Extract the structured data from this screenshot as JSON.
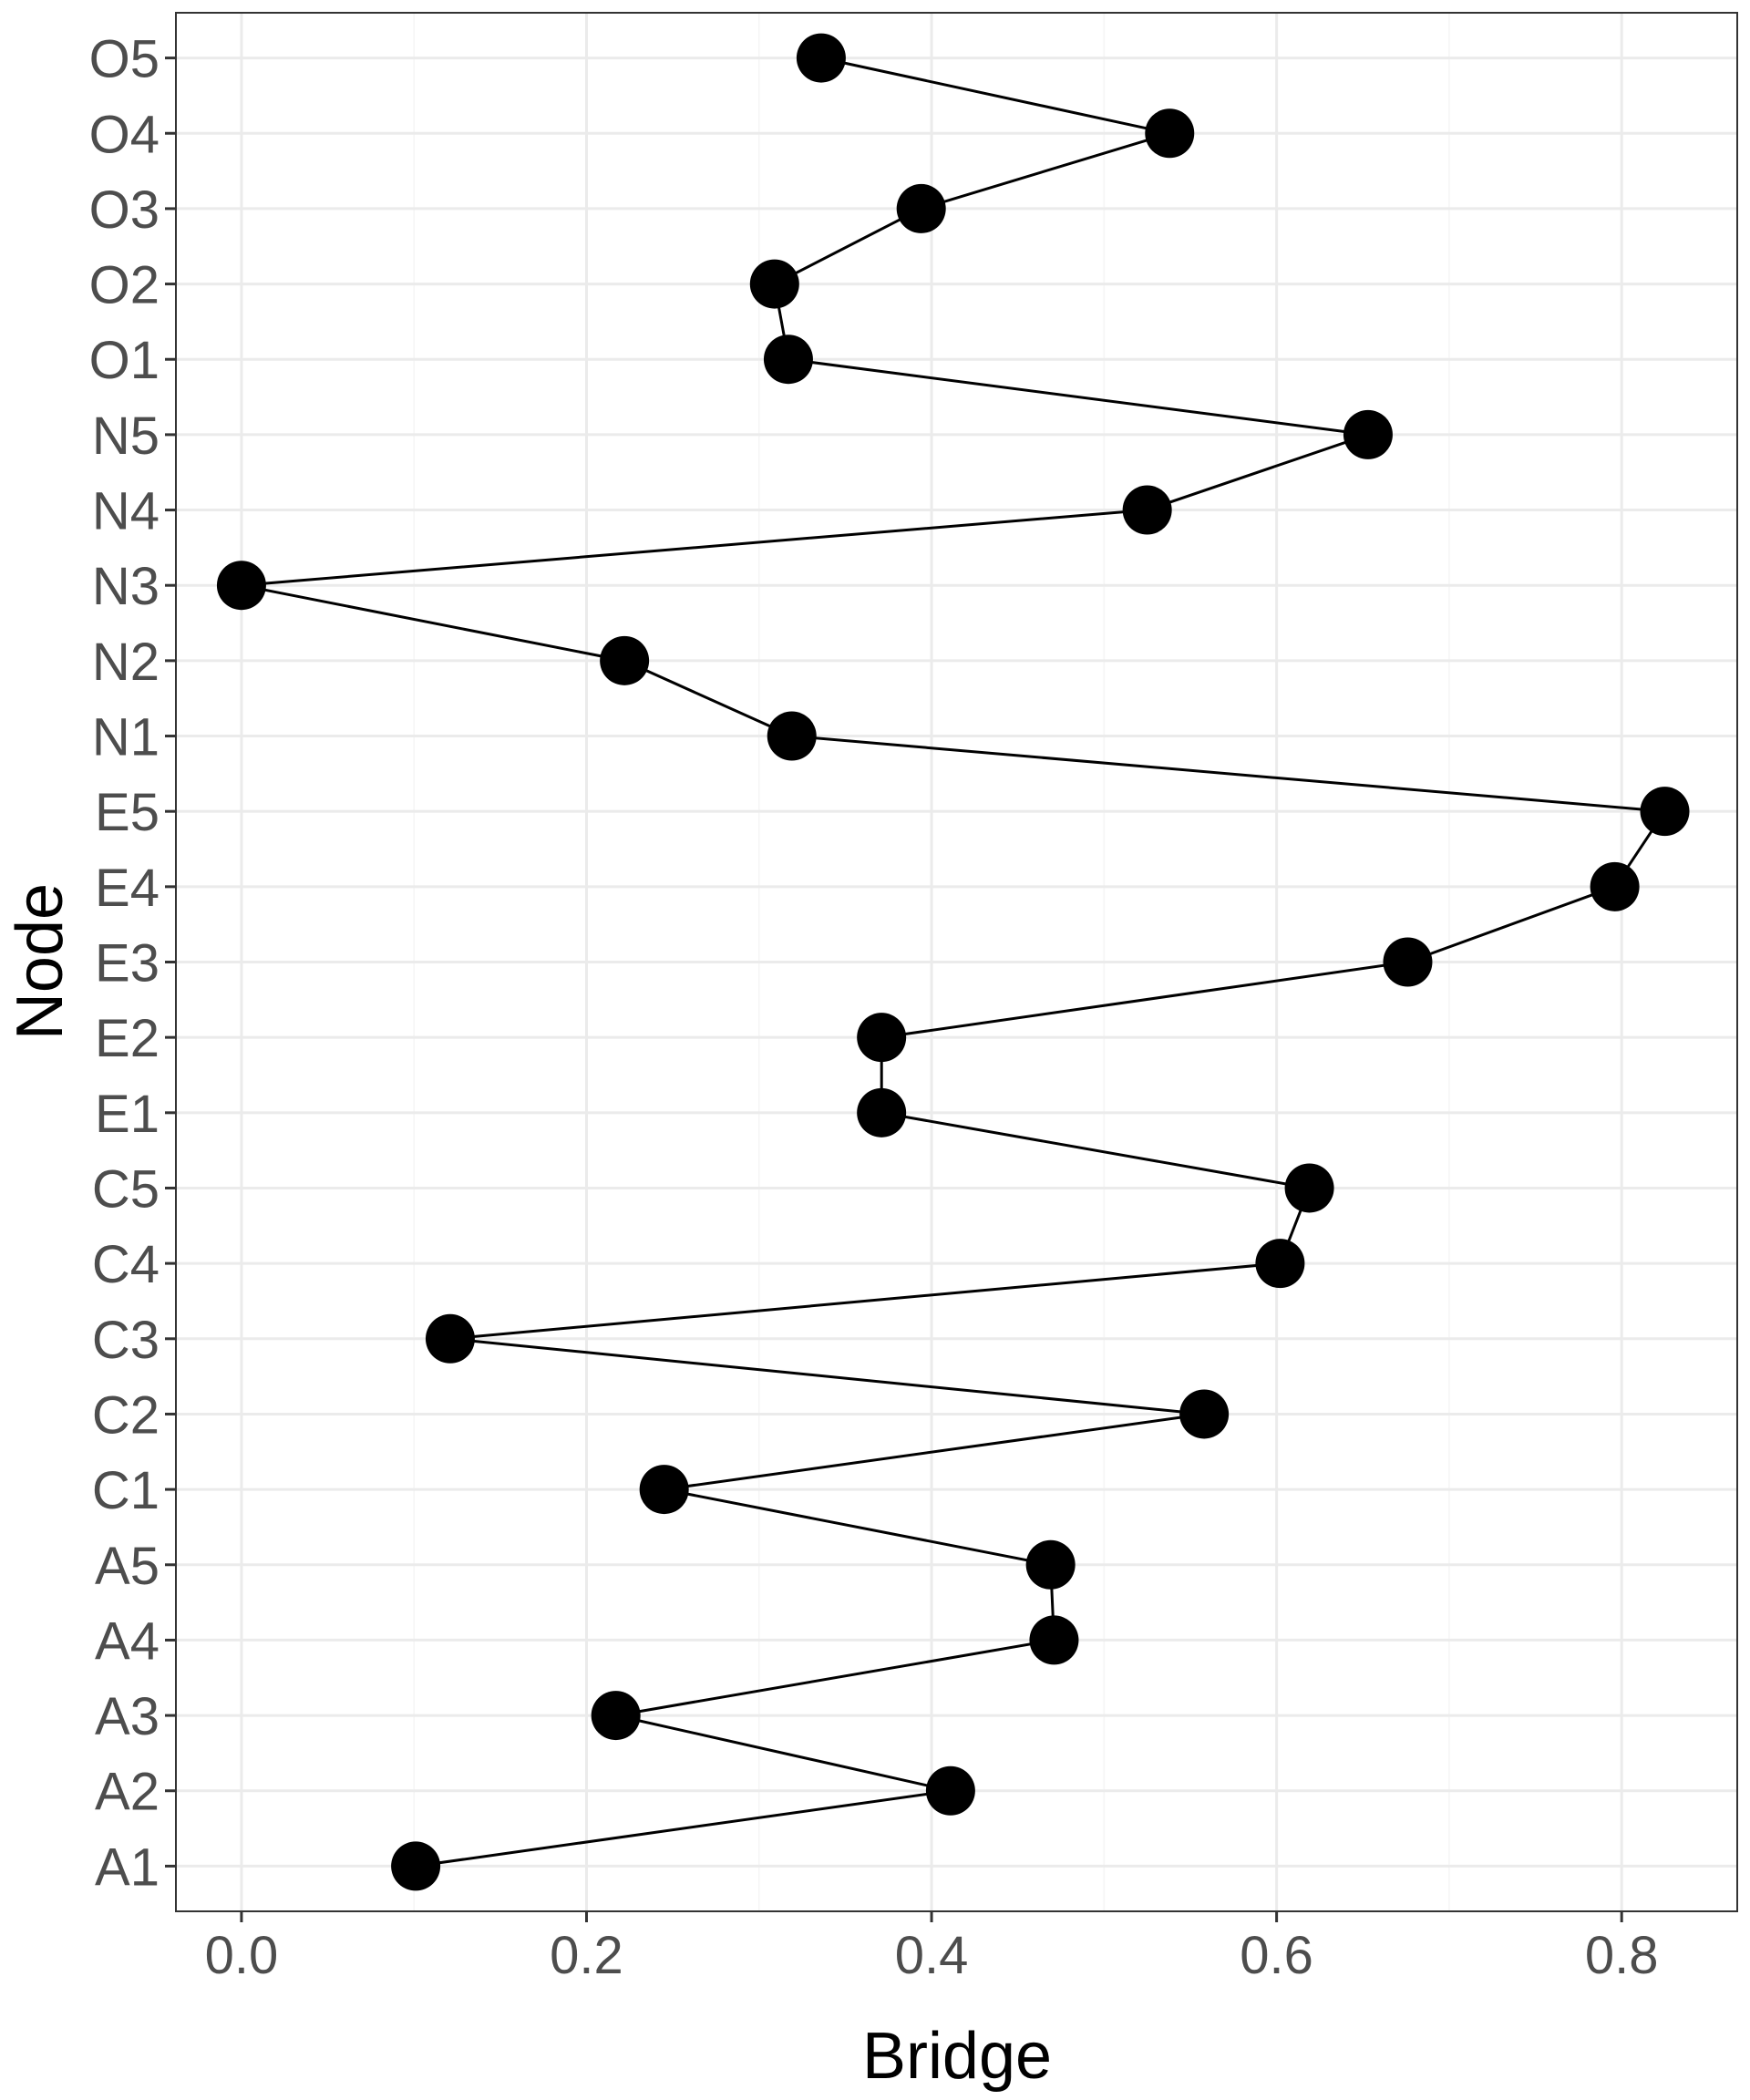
{
  "chart_data": {
    "type": "line",
    "xlabel": "Bridge",
    "ylabel": "Node",
    "xlim": [
      -0.038,
      0.867
    ],
    "x_ticks": [
      0.0,
      0.2,
      0.4,
      0.6,
      0.8
    ],
    "x_tick_labels": [
      "0.0",
      "0.2",
      "0.4",
      "0.6",
      "0.8"
    ],
    "grid": true,
    "marker": "filled-circle",
    "colors": {
      "line": "#000000",
      "point": "#000000",
      "grid_major": "#ebebeb",
      "grid_minor": "#f5f5f5",
      "panel_border": "#333333"
    },
    "categories": [
      "A1",
      "A2",
      "A3",
      "A4",
      "A5",
      "C1",
      "C2",
      "C3",
      "C4",
      "C5",
      "E1",
      "E2",
      "E3",
      "E4",
      "E5",
      "N1",
      "N2",
      "N3",
      "N4",
      "N5",
      "O1",
      "O2",
      "O3",
      "O4",
      "O5"
    ],
    "values": [
      0.101,
      0.411,
      0.217,
      0.471,
      0.469,
      0.245,
      0.558,
      0.121,
      0.602,
      0.619,
      0.371,
      0.371,
      0.676,
      0.796,
      0.825,
      0.319,
      0.222,
      0.0,
      0.525,
      0.653,
      0.317,
      0.309,
      0.394,
      0.538,
      0.336
    ]
  }
}
